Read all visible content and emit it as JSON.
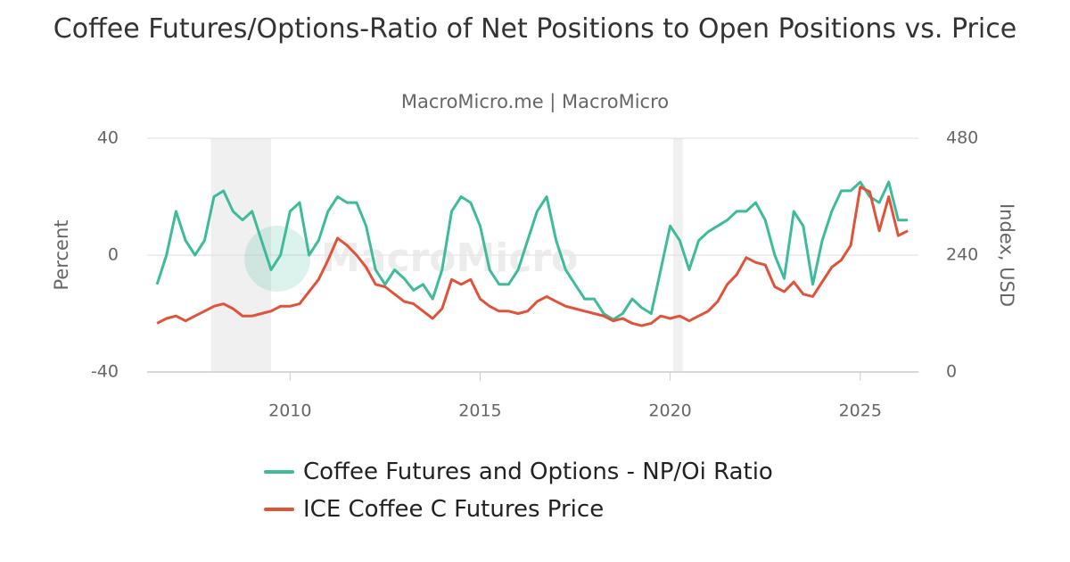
{
  "chart_data": {
    "type": "line",
    "title": "Coffee Futures/Options-Ratio of Net Positions to Open Positions vs. Price",
    "subtitle": "MacroMicro.me | MacroMicro",
    "watermark": "MacroMicro",
    "y_label": "Percent",
    "y2_label": "Index, USD",
    "x": [
      2006.5,
      2006.75,
      2007.0,
      2007.25,
      2007.5,
      2007.75,
      2008.0,
      2008.25,
      2008.5,
      2008.75,
      2009.0,
      2009.25,
      2009.5,
      2009.75,
      2010.0,
      2010.25,
      2010.5,
      2010.75,
      2011.0,
      2011.25,
      2011.5,
      2011.75,
      2012.0,
      2012.25,
      2012.5,
      2012.75,
      2013.0,
      2013.25,
      2013.5,
      2013.75,
      2014.0,
      2014.25,
      2014.5,
      2014.75,
      2015.0,
      2015.25,
      2015.5,
      2015.75,
      2016.0,
      2016.25,
      2016.5,
      2016.75,
      2017.0,
      2017.25,
      2017.5,
      2017.75,
      2018.0,
      2018.25,
      2018.5,
      2018.75,
      2019.0,
      2019.25,
      2019.5,
      2019.75,
      2020.0,
      2020.25,
      2020.5,
      2020.75,
      2021.0,
      2021.25,
      2021.5,
      2021.75,
      2022.0,
      2022.25,
      2022.5,
      2022.75,
      2023.0,
      2023.25,
      2023.5,
      2023.75,
      2024.0,
      2024.25,
      2024.5,
      2024.75,
      2025.0,
      2025.25,
      2025.5,
      2025.75,
      2026.0,
      2026.25
    ],
    "series": [
      {
        "name": "Coffee Futures and Options - NP/Oi Ratio",
        "color": "#3dbb9a",
        "axis": "y",
        "values": [
          -10,
          0,
          15,
          5,
          0,
          5,
          20,
          22,
          15,
          12,
          15,
          5,
          -5,
          0,
          15,
          18,
          0,
          5,
          15,
          20,
          18,
          18,
          10,
          -5,
          -10,
          -5,
          -8,
          -12,
          -10,
          -15,
          -5,
          15,
          20,
          18,
          10,
          -5,
          -10,
          -10,
          -5,
          5,
          15,
          20,
          5,
          -5,
          -10,
          -15,
          -15,
          -20,
          -22,
          -20,
          -15,
          -18,
          -20,
          -5,
          10,
          5,
          -5,
          5,
          8,
          10,
          12,
          15,
          15,
          18,
          12,
          0,
          -8,
          15,
          10,
          -10,
          5,
          15,
          22,
          22,
          25,
          20,
          18,
          25,
          12,
          12
        ]
      },
      {
        "name": "ICE Coffee C Futures Price",
        "color": "#e0533a",
        "axis": "y2",
        "values": [
          100,
          110,
          115,
          105,
          115,
          125,
          135,
          140,
          130,
          115,
          115,
          120,
          125,
          135,
          135,
          140,
          165,
          190,
          230,
          275,
          260,
          240,
          215,
          180,
          175,
          160,
          145,
          140,
          125,
          110,
          130,
          190,
          180,
          190,
          150,
          135,
          125,
          125,
          120,
          125,
          145,
          155,
          145,
          135,
          130,
          125,
          120,
          115,
          105,
          110,
          100,
          95,
          100,
          115,
          110,
          115,
          105,
          115,
          125,
          145,
          180,
          200,
          235,
          225,
          220,
          175,
          165,
          185,
          160,
          155,
          185,
          215,
          230,
          260,
          380,
          370,
          290,
          360,
          280,
          290
        ]
      }
    ],
    "bands": [
      [
        2007.92,
        2009.5
      ],
      [
        2020.08,
        2020.33
      ]
    ],
    "band_color": "#f0f0f0",
    "xlim": [
      2006.24,
      2026.53
    ],
    "xticks": [
      2010,
      2015,
      2020,
      2025
    ],
    "ylim": [
      -40,
      40
    ],
    "yticks": [
      -40,
      0,
      40
    ],
    "y2lim": [
      0,
      480
    ],
    "y2ticks": [
      0,
      240,
      480
    ],
    "grid": true
  }
}
